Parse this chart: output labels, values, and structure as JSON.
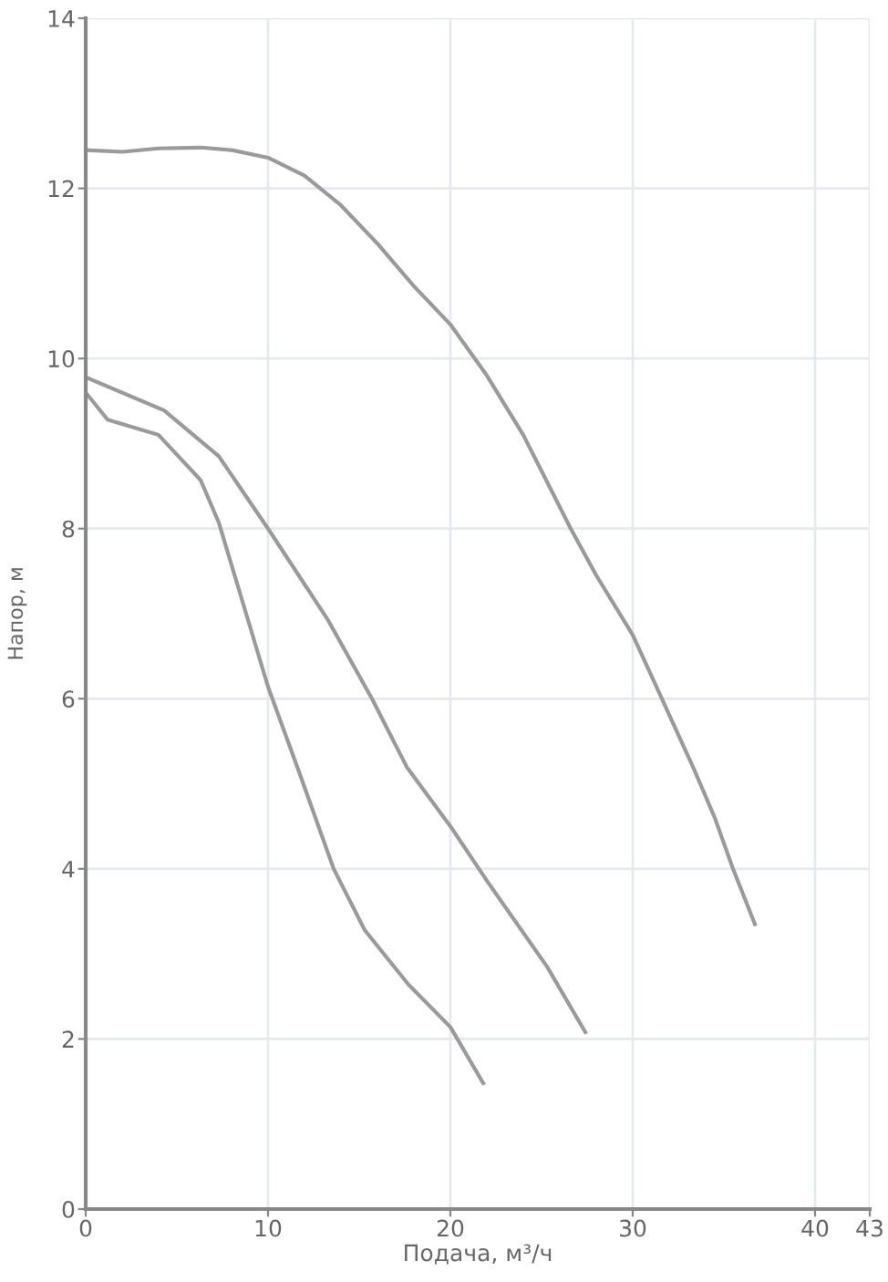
{
  "chart_data": {
    "type": "line",
    "xlabel": "Подача, м³/ч",
    "ylabel": "Напор, м",
    "xlim": [
      0,
      43
    ],
    "xticks": [
      0,
      10,
      20,
      30,
      40,
      43
    ],
    "ylim": [
      0,
      14
    ],
    "yticks": [
      0,
      2,
      4,
      6,
      8,
      10,
      12,
      14
    ],
    "grid": true,
    "marker": "none",
    "line_style": "solid",
    "series": [
      {
        "color": "#9a9a9a",
        "x": [
          0,
          2,
          4,
          6.3,
          8,
          10,
          12,
          14,
          16,
          18,
          20,
          22,
          24,
          26.6,
          28,
          30,
          31.6,
          33.3,
          34.5,
          35.5,
          36.7
        ],
        "values": [
          12.45,
          12.43,
          12.47,
          12.48,
          12.45,
          12.36,
          12.15,
          11.8,
          11.35,
          10.85,
          10.4,
          9.8,
          9.1,
          8.0,
          7.45,
          6.75,
          6.0,
          5.2,
          4.6,
          4.0,
          3.35
        ]
      },
      {
        "color": "#9a9a9a",
        "x": [
          0,
          4.3,
          7.3,
          10,
          13.3,
          15.7,
          17.6,
          20,
          22,
          25.3,
          27.4
        ],
        "values": [
          9.78,
          9.39,
          8.85,
          8.0,
          6.92,
          6.0,
          5.2,
          4.5,
          3.86,
          2.85,
          2.08
        ]
      },
      {
        "color": "#9a9a9a",
        "x": [
          0,
          1.2,
          4,
          6.3,
          7.3,
          10,
          11.6,
          13.6,
          15.3,
          17.7,
          20,
          21.8
        ],
        "values": [
          9.6,
          9.28,
          9.1,
          8.57,
          8.07,
          6.14,
          5.2,
          4.0,
          3.28,
          2.64,
          2.14,
          1.48
        ]
      }
    ]
  }
}
